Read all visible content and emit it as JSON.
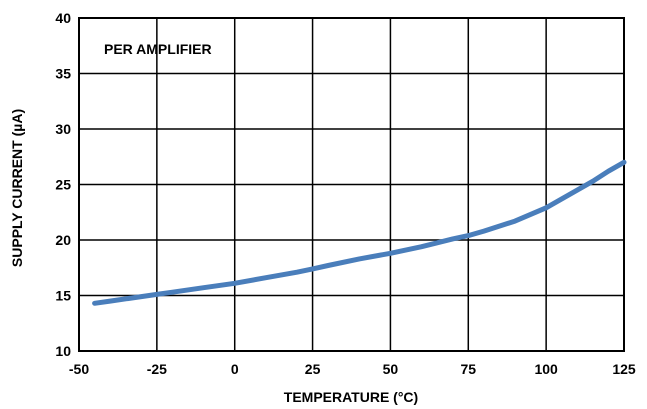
{
  "chart_data": {
    "type": "line",
    "xlabel": "TEMPERATURE (°C)",
    "ylabel": "SUPPLY CURRENT (µA)",
    "xlim": [
      -50,
      125
    ],
    "ylim": [
      10,
      40
    ],
    "xticks": [
      "-50",
      "-25",
      "0",
      "25",
      "50",
      "75",
      "100",
      "125"
    ],
    "yticks": [
      "10",
      "15",
      "20",
      "25",
      "30",
      "35",
      "40"
    ],
    "annotation": "PER AMPLIFIER",
    "grid": true,
    "line_color": "#4a7ebb",
    "series": [
      {
        "x": [
          -45,
          -40,
          -30,
          -25,
          -20,
          -10,
          0,
          10,
          20,
          25,
          30,
          40,
          50,
          60,
          70,
          75,
          80,
          90,
          100,
          105,
          110,
          115,
          120,
          125
        ],
        "y": [
          14.3,
          14.5,
          14.9,
          15.1,
          15.3,
          15.7,
          16.1,
          16.6,
          17.1,
          17.4,
          17.7,
          18.3,
          18.8,
          19.4,
          20.1,
          20.4,
          20.8,
          21.7,
          22.9,
          23.7,
          24.5,
          25.3,
          26.2,
          27.0
        ]
      }
    ]
  }
}
